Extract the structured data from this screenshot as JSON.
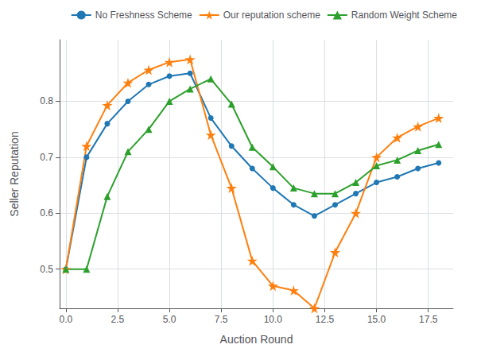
{
  "chart_data": {
    "type": "line",
    "title": "",
    "xlabel": "Auction Round",
    "ylabel": "Seller Reputation",
    "x": [
      0,
      1,
      2,
      3,
      4,
      5,
      6,
      7,
      8,
      9,
      10,
      11,
      12,
      13,
      14,
      15,
      16,
      17,
      18
    ],
    "series": [
      {
        "name": "No Freshness Scheme",
        "color": "#1f77b4",
        "marker": "circle",
        "values": [
          0.5,
          0.7,
          0.76,
          0.8,
          0.83,
          0.845,
          0.85,
          0.77,
          0.72,
          0.68,
          0.645,
          0.615,
          0.595,
          0.615,
          0.635,
          0.655,
          0.665,
          0.68,
          0.69
        ]
      },
      {
        "name": "Our reputation scheme",
        "color": "#ff7f0e",
        "marker": "star",
        "values": [
          0.5,
          0.72,
          0.793,
          0.833,
          0.856,
          0.87,
          0.875,
          0.74,
          0.645,
          0.515,
          0.47,
          0.462,
          0.43,
          0.53,
          0.6,
          0.7,
          0.735,
          0.755,
          0.77
        ]
      },
      {
        "name": "Random Weight Scheme",
        "color": "#2ca02c",
        "marker": "triangle",
        "values": [
          0.5,
          0.5,
          0.63,
          0.71,
          0.75,
          0.8,
          0.822,
          0.84,
          0.795,
          0.718,
          0.683,
          0.645,
          0.635,
          0.635,
          0.655,
          0.685,
          0.695,
          0.712,
          0.723
        ]
      }
    ],
    "xlim": [
      -0.3,
      18.7
    ],
    "xticks": [
      {
        "value": 0,
        "label": "0.0"
      },
      2.5,
      {
        "value": 5,
        "label": "5.0"
      },
      7.5,
      {
        "value": 10,
        "label": "10.0"
      },
      12.5,
      {
        "value": 15,
        "label": "15.0"
      },
      17.5
    ],
    "ylim": [
      0.43,
      0.91
    ],
    "yticks": [
      0.5,
      0.6,
      0.7,
      0.8
    ],
    "grid": true,
    "legend": "upper right"
  }
}
